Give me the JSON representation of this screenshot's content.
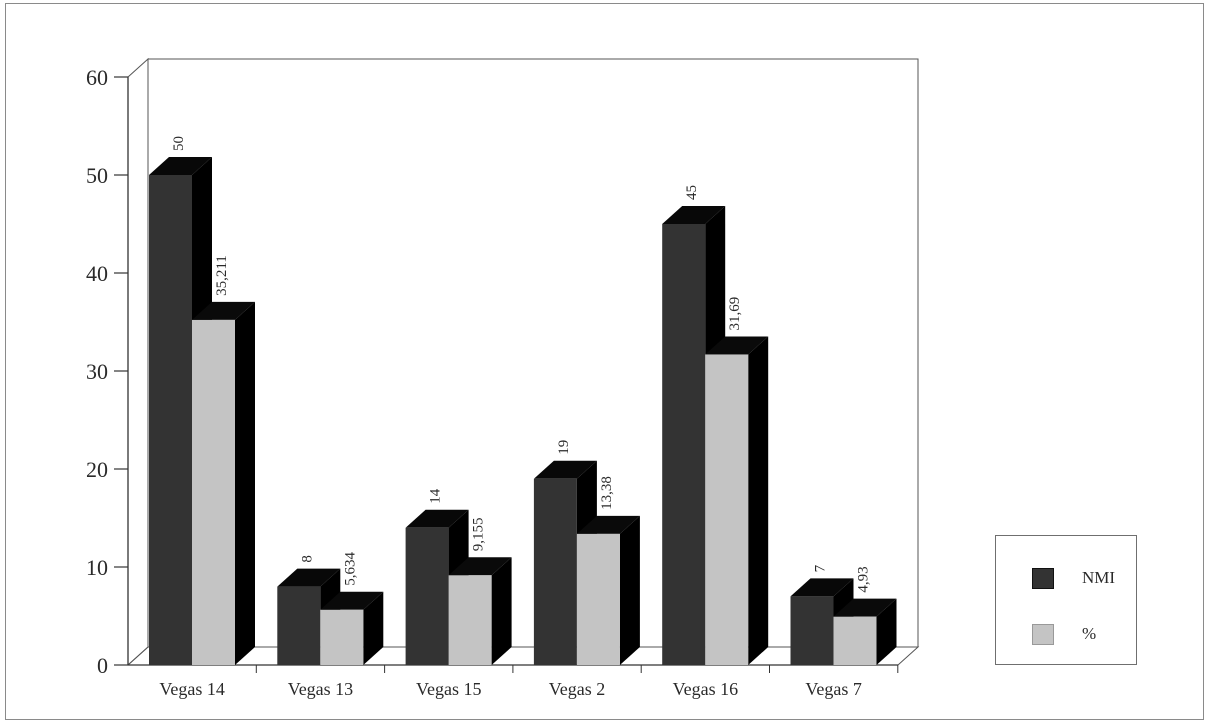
{
  "chart_data": {
    "type": "bar",
    "categories": [
      "Vegas 14",
      "Vegas 13",
      "Vegas 15",
      "Vegas 2",
      "Vegas 16",
      "Vegas 7"
    ],
    "series": [
      {
        "name": "NMI",
        "values": [
          50,
          8,
          14,
          19,
          45,
          7
        ],
        "labels": [
          "50",
          "8",
          "14",
          "19",
          "45",
          "7"
        ],
        "color": "#333333"
      },
      {
        "name": "%",
        "values": [
          35.211,
          5.634,
          9.155,
          13.38,
          31.69,
          4.93
        ],
        "labels": [
          "35,211",
          "5,634",
          "9,155",
          "13,38",
          "31,69",
          "4,93"
        ],
        "color": "#c4c4c4"
      }
    ],
    "yticks": [
      "0",
      "10",
      "20",
      "30",
      "40",
      "50",
      "60"
    ],
    "ylim": [
      0,
      60
    ],
    "style": "3d",
    "legend_position": "bottom-right"
  },
  "legend": {
    "nmi_label": "NMI",
    "pct_label": "%"
  }
}
